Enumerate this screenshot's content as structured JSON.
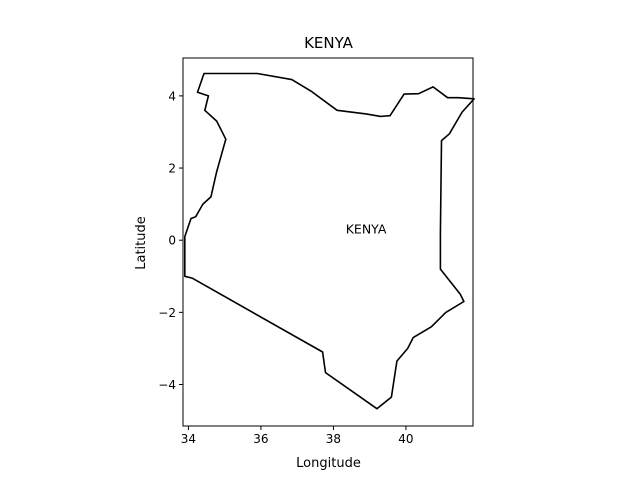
{
  "chart_data": {
    "type": "map",
    "title": "KENYA",
    "xlabel": "Longitude",
    "ylabel": "Latitude",
    "xlim": [
      33.85,
      41.85
    ],
    "ylim": [
      -5.15,
      5.05
    ],
    "xticks": [
      34,
      36,
      38,
      40
    ],
    "yticks": [
      -4,
      -2,
      0,
      2,
      4
    ],
    "grid": false,
    "annotations": [
      {
        "text": "KENYA",
        "lon": 38.9,
        "lat": 0.3
      }
    ],
    "outline_color": "#000000",
    "boundary": [
      [
        33.9,
        0.1
      ],
      [
        34.07,
        0.6
      ],
      [
        34.2,
        0.65
      ],
      [
        34.4,
        1.0
      ],
      [
        34.62,
        1.2
      ],
      [
        34.78,
        1.9
      ],
      [
        35.03,
        2.8
      ],
      [
        34.78,
        3.3
      ],
      [
        34.45,
        3.6
      ],
      [
        34.55,
        4.0
      ],
      [
        34.25,
        4.1
      ],
      [
        34.43,
        4.62
      ],
      [
        35.9,
        4.62
      ],
      [
        36.85,
        4.45
      ],
      [
        37.4,
        4.12
      ],
      [
        38.1,
        3.6
      ],
      [
        38.9,
        3.5
      ],
      [
        39.3,
        3.43
      ],
      [
        39.56,
        3.45
      ],
      [
        39.95,
        4.05
      ],
      [
        40.35,
        4.06
      ],
      [
        40.75,
        4.25
      ],
      [
        41.15,
        3.95
      ],
      [
        41.45,
        3.95
      ],
      [
        41.88,
        3.92
      ],
      [
        41.55,
        3.55
      ],
      [
        41.2,
        2.95
      ],
      [
        40.98,
        2.76
      ],
      [
        40.95,
        0.2
      ],
      [
        40.95,
        -0.8
      ],
      [
        41.5,
        -1.5
      ],
      [
        41.6,
        -1.7
      ],
      [
        41.1,
        -2.0
      ],
      [
        40.7,
        -2.4
      ],
      [
        40.2,
        -2.7
      ],
      [
        40.05,
        -3.0
      ],
      [
        39.75,
        -3.35
      ],
      [
        39.6,
        -4.35
      ],
      [
        39.2,
        -4.67
      ],
      [
        37.78,
        -3.67
      ],
      [
        37.7,
        -3.1
      ],
      [
        34.1,
        -1.05
      ],
      [
        33.9,
        -1.0
      ],
      [
        33.9,
        0.1
      ]
    ]
  }
}
